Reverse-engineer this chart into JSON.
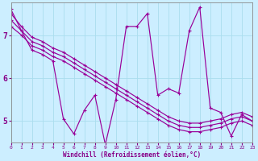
{
  "xlabel": "Windchill (Refroidissement éolien,°C)",
  "background_color": "#cceeff",
  "line_color": "#990099",
  "grid_color": "#aaddee",
  "xlim": [
    0,
    23
  ],
  "ylim": [
    4.5,
    7.75
  ],
  "yticks": [
    5,
    6,
    7
  ],
  "xticks": [
    0,
    1,
    2,
    3,
    4,
    5,
    6,
    7,
    8,
    9,
    10,
    11,
    12,
    13,
    14,
    15,
    16,
    17,
    18,
    19,
    20,
    21,
    22,
    23
  ],
  "series_main": [
    7.35,
    7.1,
    6.85,
    6.75,
    6.6,
    6.5,
    6.35,
    6.2,
    6.05,
    5.9,
    5.75,
    5.6,
    5.45,
    5.3,
    5.15,
    5.0,
    4.9,
    4.85,
    4.85,
    4.9,
    4.95,
    5.05,
    5.1,
    5.0
  ],
  "series_upper": [
    7.5,
    7.2,
    6.95,
    6.85,
    6.7,
    6.6,
    6.45,
    6.3,
    6.15,
    6.0,
    5.85,
    5.7,
    5.55,
    5.4,
    5.25,
    5.1,
    5.0,
    4.95,
    4.95,
    5.0,
    5.05,
    5.15,
    5.2,
    5.1
  ],
  "series_lower": [
    7.2,
    7.0,
    6.75,
    6.65,
    6.5,
    6.4,
    6.25,
    6.1,
    5.95,
    5.8,
    5.65,
    5.5,
    5.35,
    5.2,
    5.05,
    4.9,
    4.8,
    4.75,
    4.75,
    4.8,
    4.85,
    4.95,
    5.0,
    4.9
  ],
  "series_jagged": [
    7.6,
    7.1,
    6.65,
    6.55,
    6.4,
    5.05,
    4.7,
    5.25,
    5.6,
    4.45,
    5.5,
    7.2,
    7.2,
    7.5,
    5.6,
    5.75,
    5.65,
    7.1,
    7.65,
    5.3,
    5.2,
    4.65,
    5.15,
    5.0
  ]
}
